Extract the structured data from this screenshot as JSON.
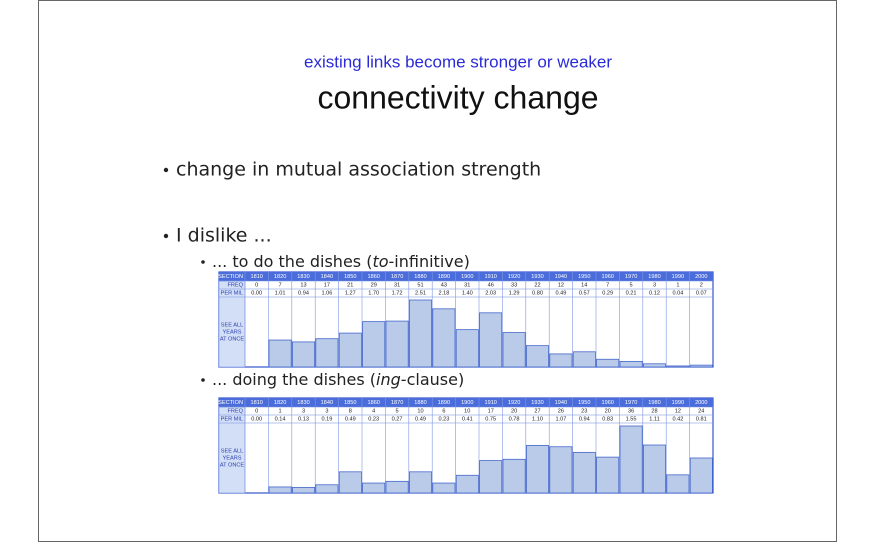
{
  "subtitle": "existing links become stronger or weaker",
  "title": "connectivity change",
  "bullets": [
    {
      "text": "change in mutual association strength"
    },
    {
      "text": "I dislike ...",
      "subitems": [
        {
          "parts": [
            "... to do the dishes (",
            "to",
            "-infinitive)"
          ]
        },
        {
          "parts": [
            "... doing the dishes (",
            "ing",
            "-clause)"
          ]
        }
      ]
    }
  ],
  "tables": [
    {
      "row_labels": [
        "SECTION",
        "FREQ",
        "PER MIL"
      ],
      "side_label": [
        "SEE ALL",
        "YEARS",
        "AT ONCE"
      ],
      "sections": [
        "1810",
        "1820",
        "1830",
        "1840",
        "1850",
        "1860",
        "1870",
        "1880",
        "1890",
        "1900",
        "1910",
        "1920",
        "1930",
        "1940",
        "1950",
        "1960",
        "1970",
        "1980",
        "1990",
        "2000"
      ],
      "freq": [
        "0",
        "7",
        "13",
        "17",
        "21",
        "29",
        "31",
        "51",
        "43",
        "31",
        "46",
        "33",
        "22",
        "12",
        "14",
        "7",
        "5",
        "3",
        "1",
        "2"
      ],
      "per_mil": [
        "0.00",
        "1.01",
        "0.94",
        "1.06",
        "1.27",
        "1.70",
        "1.72",
        "2.51",
        "2.18",
        "1.40",
        "2.03",
        "1.29",
        "0.80",
        "0.49",
        "0.57",
        "0.29",
        "0.21",
        "0.12",
        "0.04",
        "0.07"
      ]
    },
    {
      "row_labels": [
        "SECTION",
        "FREQ",
        "PER MIL"
      ],
      "side_label": [
        "SEE ALL",
        "YEARS",
        "AT ONCE"
      ],
      "sections": [
        "1810",
        "1820",
        "1830",
        "1840",
        "1850",
        "1860",
        "1870",
        "1880",
        "1890",
        "1900",
        "1910",
        "1920",
        "1930",
        "1940",
        "1950",
        "1960",
        "1970",
        "1980",
        "1990",
        "2000"
      ],
      "freq": [
        "0",
        "1",
        "3",
        "3",
        "8",
        "4",
        "5",
        "10",
        "6",
        "10",
        "17",
        "20",
        "27",
        "26",
        "23",
        "20",
        "36",
        "28",
        "12",
        "24"
      ],
      "per_mil": [
        "0.00",
        "0.14",
        "0.13",
        "0.19",
        "0.49",
        "0.23",
        "0.27",
        "0.49",
        "0.23",
        "0.41",
        "0.75",
        "0.78",
        "1.10",
        "1.07",
        "0.94",
        "0.83",
        "1.55",
        "1.11",
        "0.42",
        "0.81"
      ]
    }
  ]
}
